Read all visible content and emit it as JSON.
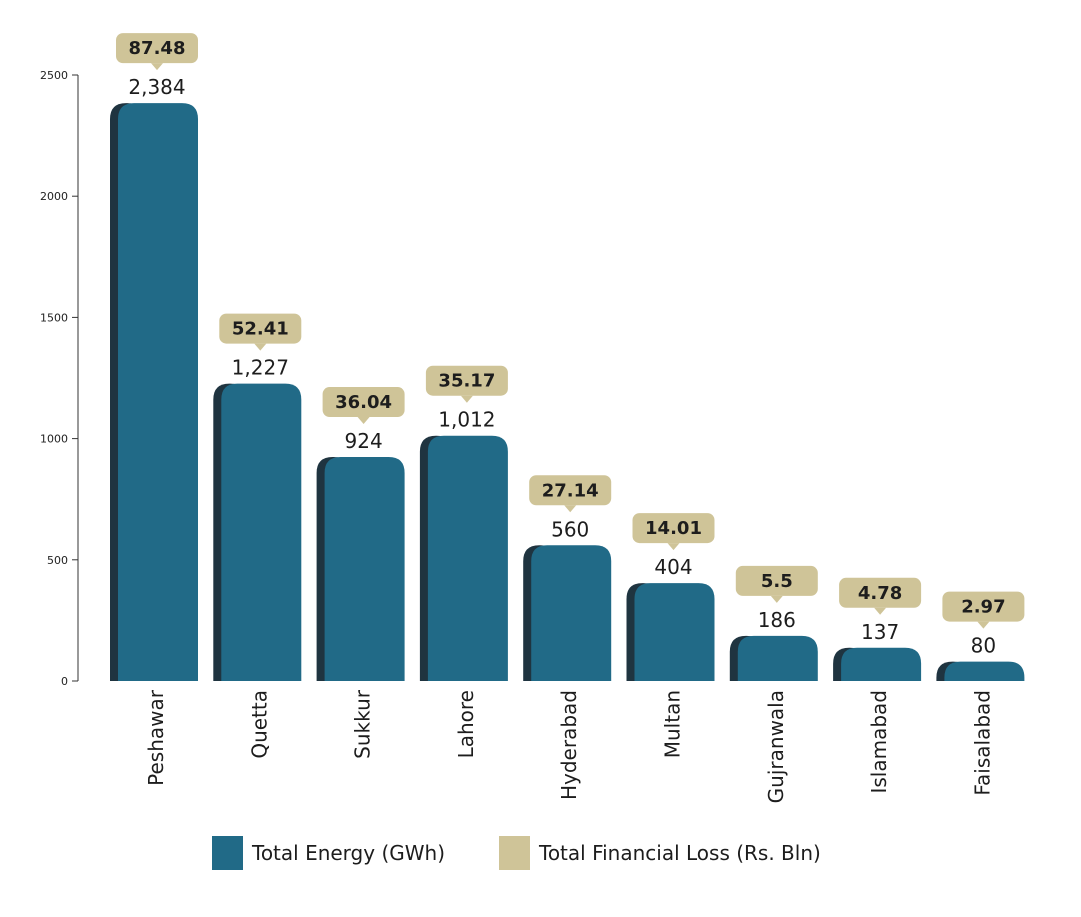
{
  "chart_data": {
    "type": "bar",
    "categories": [
      "Peshawar",
      "Quetta",
      "Sukkur",
      "Lahore",
      "Hyderabad",
      "Multan",
      "Gujranwala",
      "Islamabad",
      "Faisalabad"
    ],
    "series": [
      {
        "name": "Total Energy (GWh)",
        "values": [
          2384,
          1227,
          924,
          1012,
          560,
          404,
          186,
          137,
          80
        ],
        "labels": [
          "2,384",
          "1,227",
          "924",
          "1,012",
          "560",
          "404",
          "186",
          "137",
          "80"
        ]
      },
      {
        "name": "Total Financial Loss (Rs. Bln)",
        "values": [
          87.48,
          52.41,
          36.04,
          35.17,
          27.14,
          14.01,
          5.5,
          4.78,
          2.97
        ],
        "labels": [
          "87.48",
          "52.41",
          "36.04",
          "35.17",
          "27.14",
          "14.01",
          "5.5",
          "4.78",
          "2.97"
        ]
      }
    ],
    "y_ticks": [
      "0",
      "500",
      "1000",
      "1500",
      "2000",
      "2500"
    ],
    "ylim": [
      0,
      2500
    ],
    "grid": false,
    "legend_position": "bottom"
  },
  "colors": {
    "energy": "#216a87",
    "energy_shadow": "#1f3440",
    "loss": "#cfc498",
    "text": "#1d1d1d"
  }
}
